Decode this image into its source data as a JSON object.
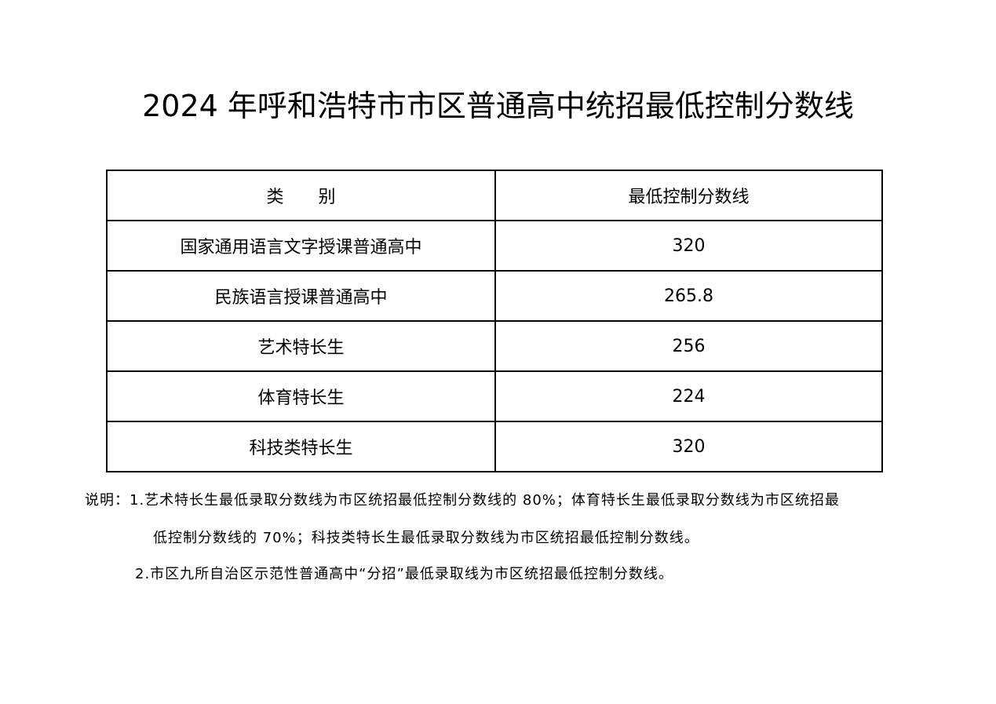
{
  "title": "2024 年呼和浩特市市区普通高中统招最低控制分数线",
  "table": {
    "headers": [
      "类　　别",
      "最低控制分数线"
    ],
    "rows": [
      [
        "国家通用语言文字授课普通高中",
        "320"
      ],
      [
        "民族语言授课普通高中",
        "265.8"
      ],
      [
        "艺术特长生",
        "256"
      ],
      [
        "体育特长生",
        "224"
      ],
      [
        "科技类特长生",
        "320"
      ]
    ]
  },
  "notes": {
    "line1": "说明：1.艺术特长生最低录取分数线为市区统招最低控制分数线的 80%；体育特长生最低录取分数线为市区统招最",
    "line2": "低控制分数线的 70%；科技类特长生最低录取分数线为市区统招最低控制分数线。",
    "line3": "2.市区九所自治区示范性普通高中“分招”最低录取线为市区统招最低控制分数线。"
  }
}
